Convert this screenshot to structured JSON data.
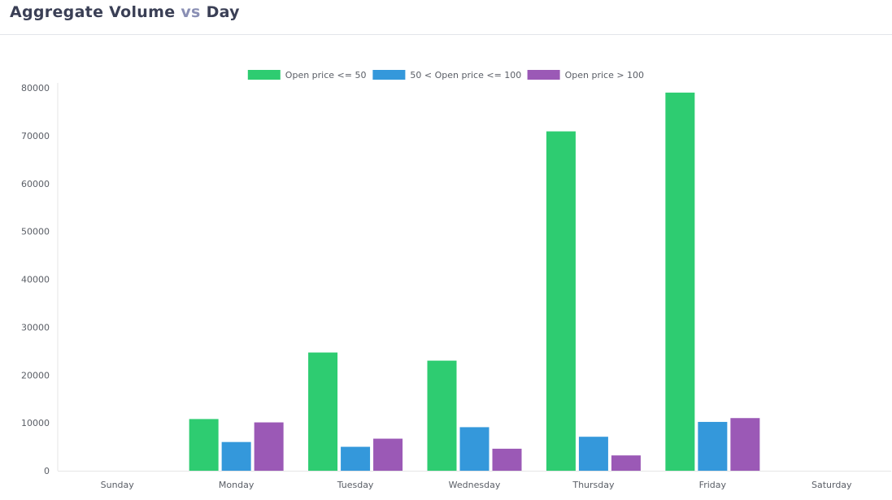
{
  "header": {
    "title_part1": "Aggregate Volume",
    "title_vs": "vs",
    "title_part2": "Day"
  },
  "colors": {
    "title": "#3a3f55",
    "vs": "#8a8fb4",
    "series": [
      "#2ecc71",
      "#3498db",
      "#9b59b6"
    ]
  },
  "chart_data": {
    "type": "bar",
    "categories": [
      "Sunday",
      "Monday",
      "Tuesday",
      "Wednesday",
      "Thursday",
      "Friday",
      "Saturday"
    ],
    "series": [
      {
        "name": "Open price <= 50",
        "values": [
          0,
          10800,
          24700,
          23000,
          70900,
          79000,
          0
        ]
      },
      {
        "name": "50 < Open price <= 100",
        "values": [
          0,
          6000,
          5000,
          9100,
          7100,
          10200,
          0
        ]
      },
      {
        "name": "Open price > 100",
        "values": [
          0,
          10100,
          6700,
          4600,
          3200,
          11000,
          0
        ]
      }
    ],
    "yticks": [
      "0",
      "10000",
      "20000",
      "30000",
      "40000",
      "50000",
      "60000",
      "70000",
      "80000"
    ],
    "ylim": [
      0,
      80000
    ],
    "legend_position": "top-center",
    "grid": false
  }
}
